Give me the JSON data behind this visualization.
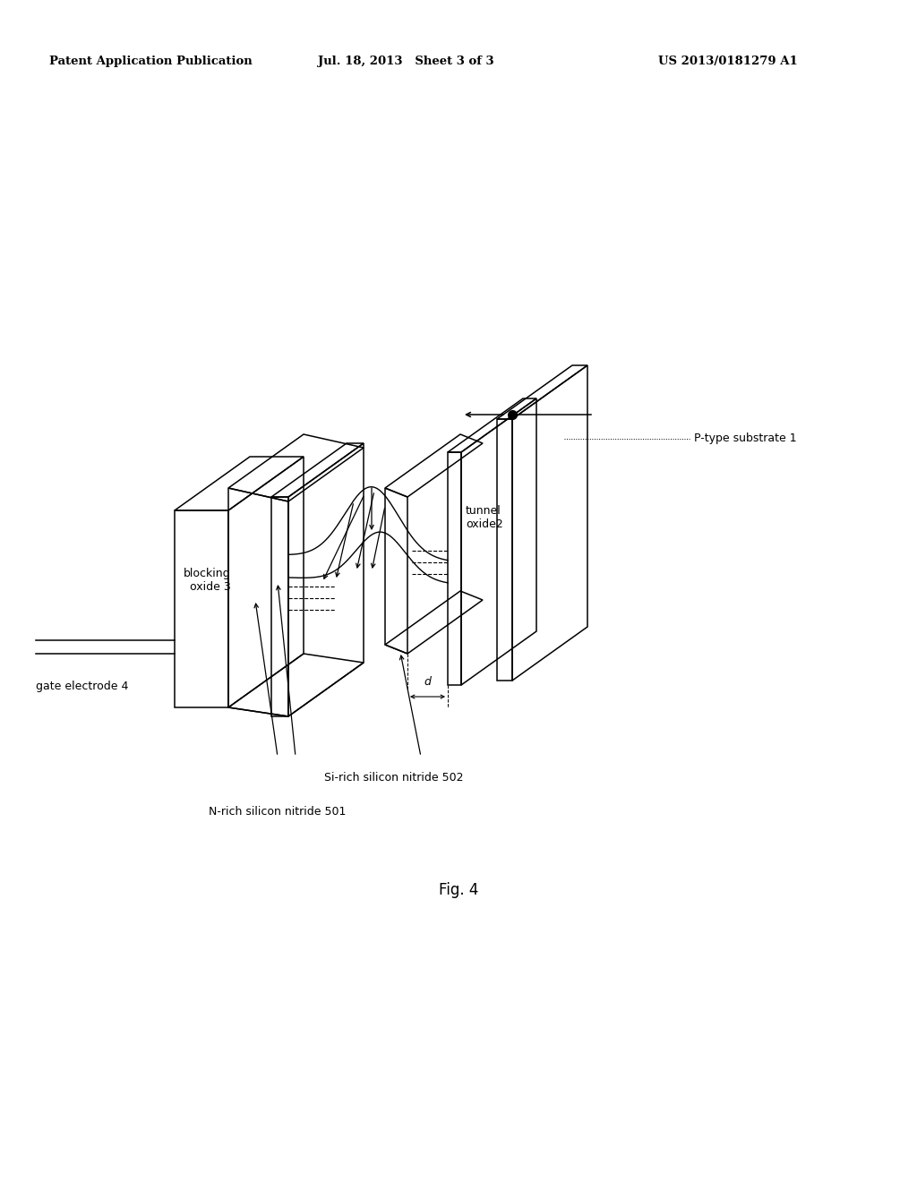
{
  "title_left": "Patent Application Publication",
  "title_mid": "Jul. 18, 2013   Sheet 3 of 3",
  "title_right": "US 2013/0181279 A1",
  "fig_label": "Fig. 4",
  "labels": {
    "gate_electrode": "gate electrode 4",
    "blocking_oxide": "blocking\noxide 3",
    "tunnel_oxide": "tunnel\noxide2",
    "p_type": "P-type substrate 1",
    "si_rich": "Si-rich silicon nitride 502",
    "n_rich": "N-rich silicon nitride 501",
    "d_label": "d"
  },
  "bg_color": "#ffffff",
  "line_color": "#000000"
}
